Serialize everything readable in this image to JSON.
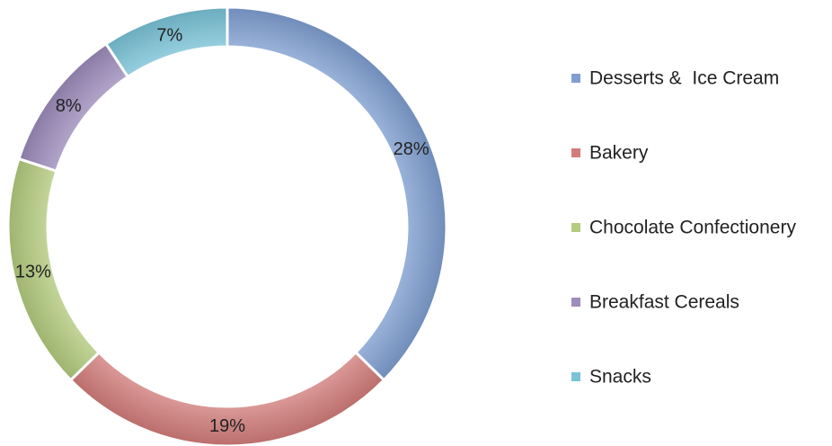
{
  "chart_data": {
    "type": "pie",
    "variant": "donut",
    "title": "",
    "legend_position": "right",
    "series": [
      {
        "name": "Desserts &  Ice Cream",
        "value": 28,
        "label": "28%",
        "color": "#7f9fd2"
      },
      {
        "name": "Bakery",
        "value": 19,
        "label": "19%",
        "color": "#d37d7b"
      },
      {
        "name": "Chocolate Confectionery",
        "value": 13,
        "label": "13%",
        "color": "#b4cc7e"
      },
      {
        "name": "Breakfast Cereals",
        "value": 8,
        "label": "8%",
        "color": "#9d8cbc"
      },
      {
        "name": "Snacks",
        "value": 7,
        "label": "7%",
        "color": "#79c4d8"
      }
    ]
  }
}
